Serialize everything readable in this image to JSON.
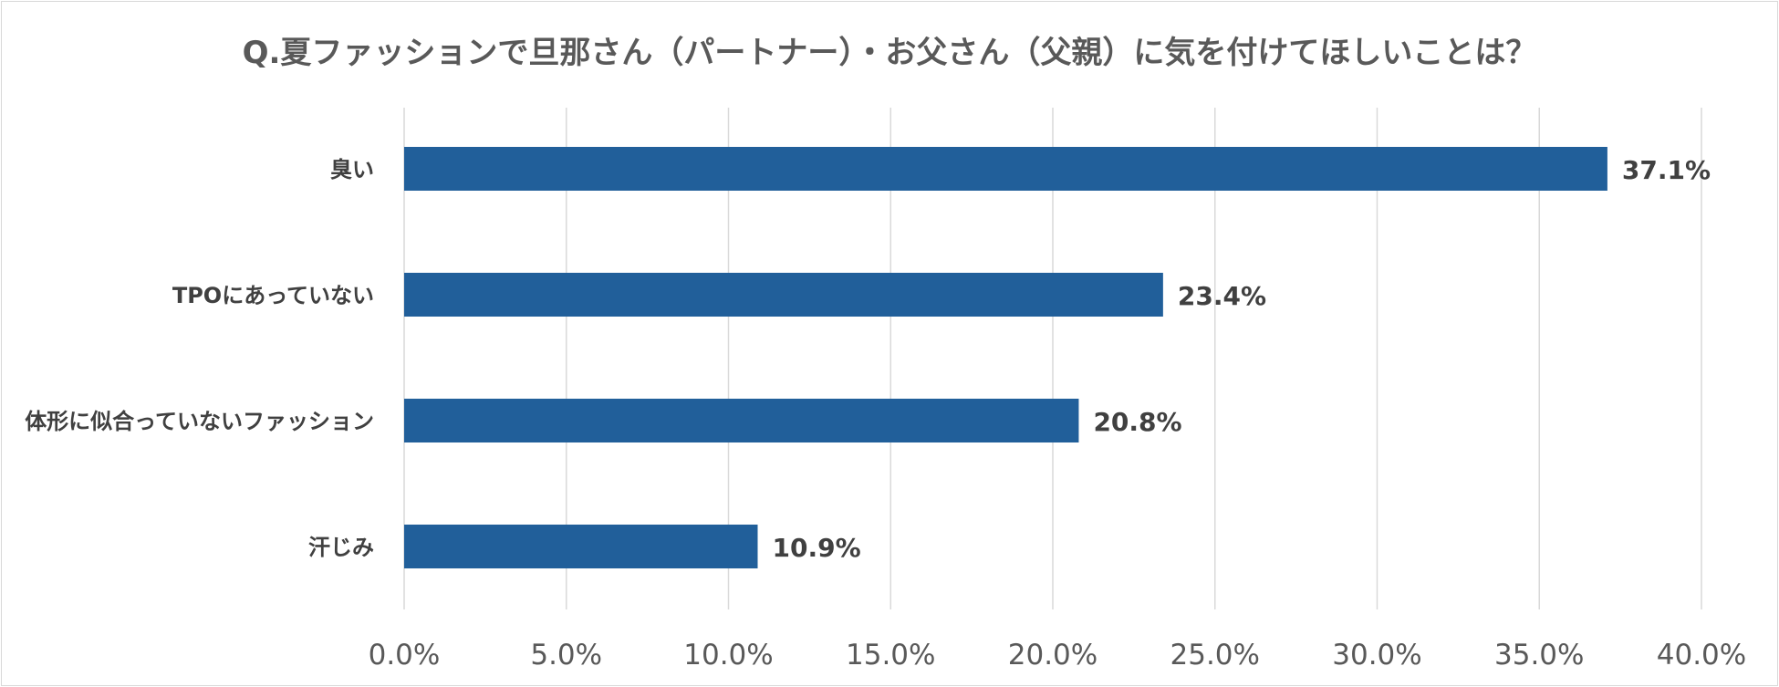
{
  "chart_data": {
    "type": "bar",
    "orientation": "horizontal",
    "title": "Q.夏ファッションで旦那さん（パートナー）・お父さん（父親）に気を付けてほしいことは？",
    "categories": [
      "臭い",
      "TPOにあっていない",
      "体形に似合っていないファッション",
      "汗じみ"
    ],
    "values": [
      37.1,
      23.4,
      20.8,
      10.9
    ],
    "data_labels": [
      "37.1%",
      "23.4%",
      "20.8%",
      "10.9%"
    ],
    "xlim": [
      0,
      40
    ],
    "x_ticks": [
      0,
      5,
      10,
      15,
      20,
      25,
      30,
      35,
      40
    ],
    "x_tick_labels": [
      "0.0%",
      "5.0%",
      "10.0%",
      "15.0%",
      "20.0%",
      "25.0%",
      "30.0%",
      "35.0%",
      "40.0%"
    ],
    "grid": true,
    "legend": "none",
    "colors": {
      "bar": "#215f9a",
      "grid": "#d9d9d9",
      "title": "#595959",
      "tick_text": "#595959",
      "label_text": "#404040"
    }
  }
}
